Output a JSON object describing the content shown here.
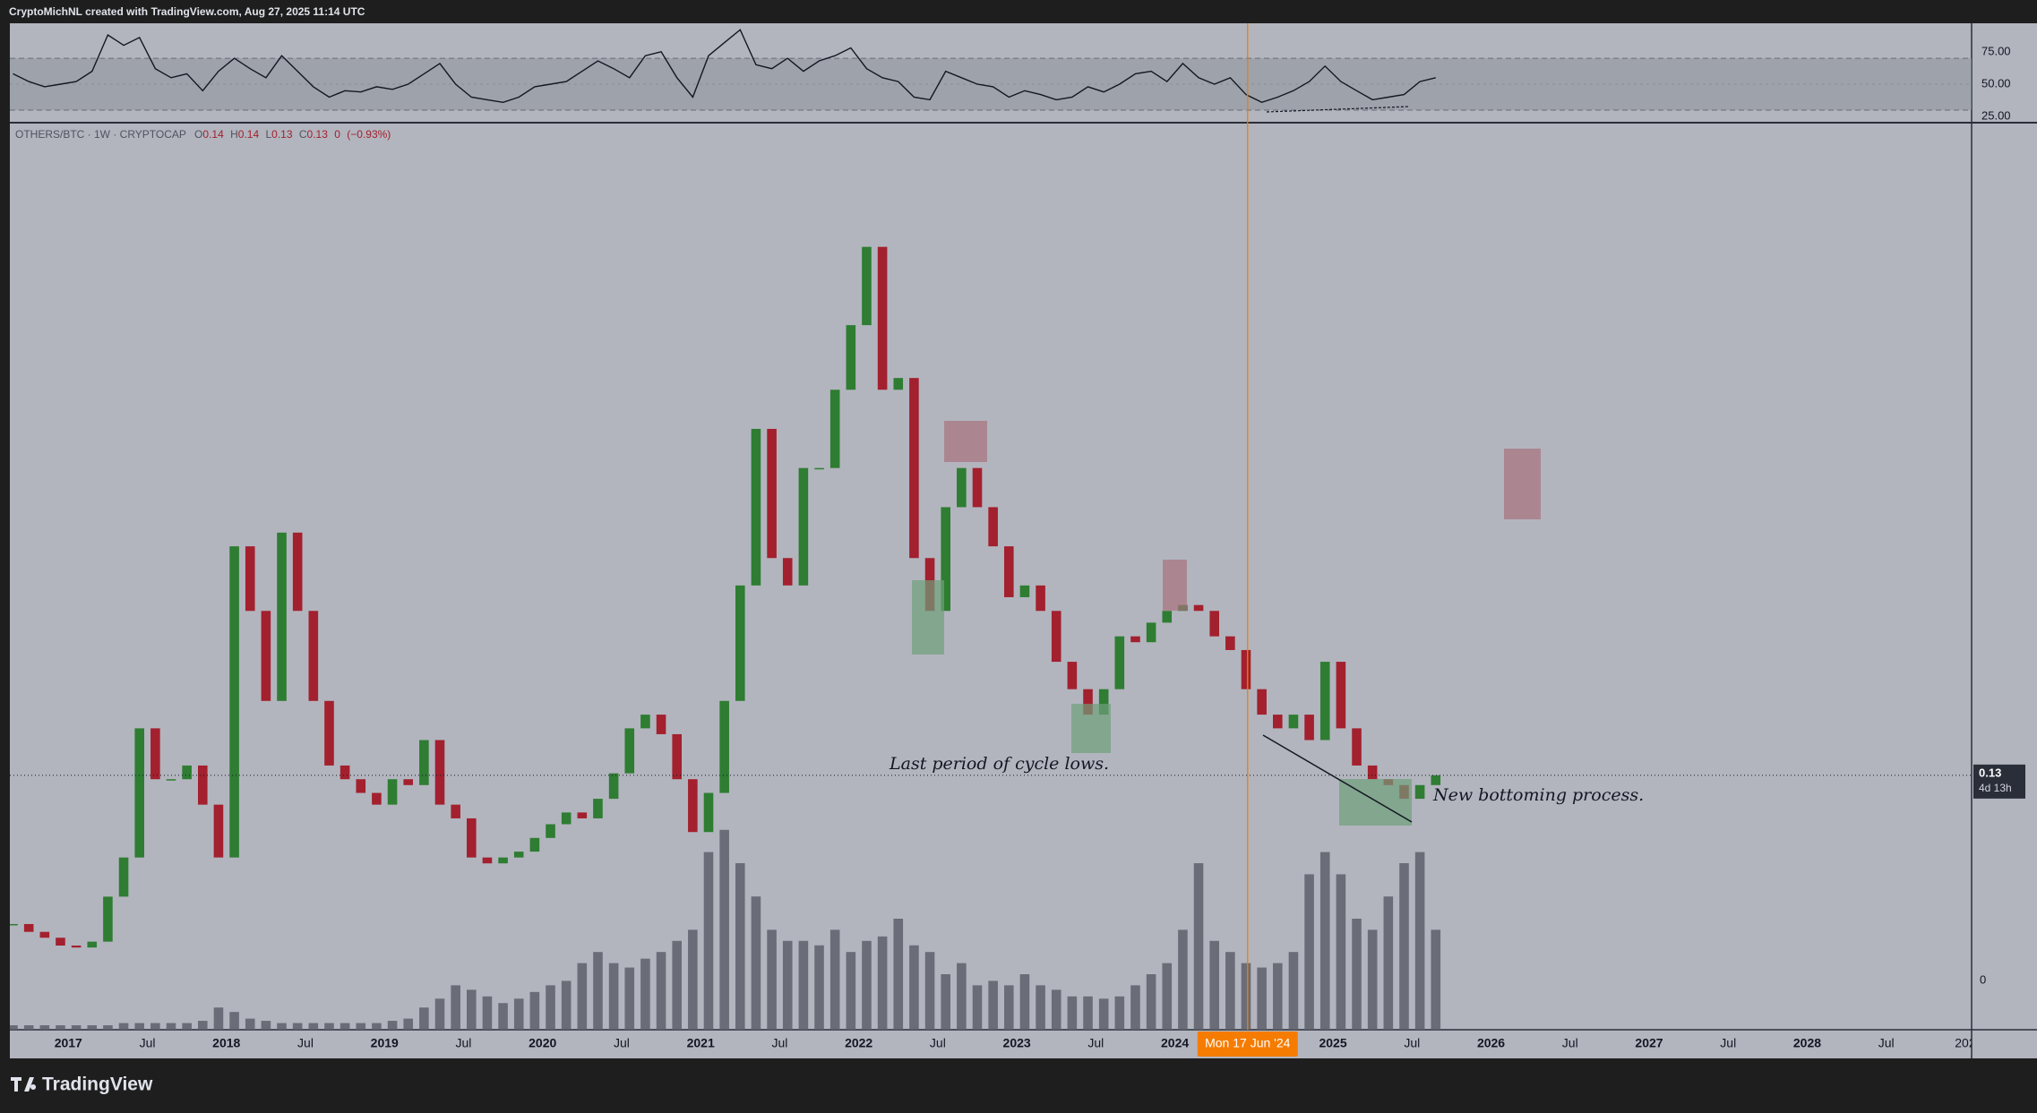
{
  "header": "CryptoMichNL created with TradingView.com, Aug 27, 2025 11:14 UTC",
  "footer_logo": "TradingView",
  "chart_data": [
    {
      "type": "candlestick",
      "symbol": "OTHERS/BTC · 1W · CRYPTOCAP",
      "ohlc": [
        {
          "label": "O",
          "value": 0.14
        },
        {
          "label": "H",
          "value": 0.14
        },
        {
          "label": "L",
          "value": 0.13
        },
        {
          "label": "C",
          "value": 0.13
        }
      ],
      "change": 0,
      "change_pct": {
        "value": -0.93,
        "label": "(−0.93%)"
      },
      "up_color": "#2e7d32",
      "down_color": "#a3202e",
      "x": [
        2016.65,
        2016.75,
        2016.85,
        2016.95,
        2017.05,
        2017.15,
        2017.25,
        2017.35,
        2017.45,
        2017.55,
        2017.65,
        2017.75,
        2017.85,
        2017.95,
        2018.05,
        2018.15,
        2018.25,
        2018.35,
        2018.45,
        2018.55,
        2018.65,
        2018.75,
        2018.85,
        2018.95,
        2019.05,
        2019.15,
        2019.25,
        2019.35,
        2019.45,
        2019.55,
        2019.65,
        2019.75,
        2019.85,
        2019.95,
        2020.05,
        2020.15,
        2020.25,
        2020.35,
        2020.45,
        2020.55,
        2020.65,
        2020.75,
        2020.85,
        2020.95,
        2021.05,
        2021.15,
        2021.25,
        2021.35,
        2021.45,
        2021.55,
        2021.65,
        2021.75,
        2021.85,
        2021.95,
        2022.05,
        2022.15,
        2022.25,
        2022.35,
        2022.45,
        2022.55,
        2022.65,
        2022.75,
        2022.85,
        2022.95,
        2023.05,
        2023.15,
        2023.25,
        2023.35,
        2023.45,
        2023.55,
        2023.65,
        2023.75,
        2023.85,
        2023.95,
        2024.05,
        2024.15,
        2024.25,
        2024.35,
        2024.45,
        2024.55,
        2024.65,
        2024.75,
        2024.85,
        2024.95,
        2025.05,
        2025.15,
        2025.25,
        2025.35,
        2025.45,
        2025.55,
        2025.65
      ],
      "values": [
        0.054,
        0.05,
        0.047,
        0.043,
        0.042,
        0.045,
        0.068,
        0.088,
        0.154,
        0.128,
        0.128,
        0.135,
        0.115,
        0.088,
        0.247,
        0.214,
        0.168,
        0.254,
        0.214,
        0.168,
        0.135,
        0.128,
        0.121,
        0.115,
        0.128,
        0.125,
        0.148,
        0.115,
        0.108,
        0.088,
        0.085,
        0.088,
        0.091,
        0.098,
        0.105,
        0.111,
        0.108,
        0.118,
        0.131,
        0.154,
        0.161,
        0.151,
        0.128,
        0.101,
        0.121,
        0.168,
        0.227,
        0.307,
        0.241,
        0.227,
        0.287,
        0.287,
        0.327,
        0.36,
        0.4,
        0.327,
        0.333,
        0.241,
        0.214,
        0.267,
        0.287,
        0.267,
        0.247,
        0.221,
        0.227,
        0.214,
        0.188,
        0.174,
        0.161,
        0.174,
        0.201,
        0.198,
        0.208,
        0.214,
        0.217,
        0.214,
        0.201,
        0.194,
        0.174,
        0.161,
        0.154,
        0.161,
        0.148,
        0.188,
        0.154,
        0.135,
        0.128,
        0.125,
        0.118,
        0.125,
        0.13
      ],
      "volume": {
        "color": "#5d606b",
        "ylim": [
          0,
          100
        ],
        "yticks": [
          0
        ],
        "values": [
          2,
          2,
          2,
          2,
          2,
          2,
          2,
          3,
          3,
          3,
          3,
          3,
          4,
          10,
          8,
          5,
          4,
          3,
          3,
          3,
          3,
          3,
          3,
          3,
          4,
          5,
          10,
          14,
          20,
          18,
          15,
          12,
          14,
          17,
          20,
          22,
          30,
          35,
          30,
          28,
          32,
          35,
          40,
          45,
          80,
          90,
          75,
          60,
          45,
          40,
          40,
          38,
          45,
          35,
          40,
          42,
          50,
          38,
          35,
          25,
          30,
          20,
          22,
          20,
          25,
          20,
          18,
          15,
          15,
          14,
          15,
          20,
          25,
          30,
          45,
          75,
          40,
          35,
          30,
          28,
          30,
          35,
          70,
          80,
          70,
          50,
          45,
          60,
          75,
          80,
          45
        ]
      },
      "xlim": [
        2016.63,
        2029.04
      ],
      "ylim": [
        0,
        0.463
      ],
      "xticks": [
        2017,
        {
          "value": 2017.5,
          "label": "Jul"
        },
        2018,
        {
          "value": 2018.5,
          "label": "Jul"
        },
        2019,
        {
          "value": 2019.5,
          "label": "Jul"
        },
        2020,
        {
          "value": 2020.5,
          "label": "Jul"
        },
        2021,
        {
          "value": 2021.5,
          "label": "Jul"
        },
        2022,
        {
          "value": 2022.5,
          "label": "Jul"
        },
        2023,
        {
          "value": 2023.5,
          "label": "Jul"
        },
        2024,
        2025,
        {
          "value": 2025.5,
          "label": "Jul"
        },
        2026,
        {
          "value": 2026.5,
          "label": "Jul"
        },
        2027,
        {
          "value": 2027.5,
          "label": "Jul"
        },
        2028,
        {
          "value": 2028.5,
          "label": "Jul"
        },
        {
          "value": 2029,
          "label": "202"
        }
      ],
      "crosshair": {
        "value": 2024.46,
        "label": "Mon 17 Jun '24",
        "color": "#f57c00"
      },
      "last_price": {
        "value": 0.13,
        "countdown": "4d 13h"
      },
      "annotations": [
        "Last period of cycle lows.",
        "New bottoming process."
      ]
    },
    {
      "type": "line",
      "color": "#131722",
      "x": [
        2016.65,
        2016.75,
        2016.85,
        2016.95,
        2017.05,
        2017.15,
        2017.25,
        2017.35,
        2017.45,
        2017.55,
        2017.65,
        2017.75,
        2017.85,
        2017.95,
        2018.05,
        2018.15,
        2018.25,
        2018.35,
        2018.45,
        2018.55,
        2018.65,
        2018.75,
        2018.85,
        2018.95,
        2019.05,
        2019.15,
        2019.25,
        2019.35,
        2019.45,
        2019.55,
        2019.65,
        2019.75,
        2019.85,
        2019.95,
        2020.05,
        2020.15,
        2020.25,
        2020.35,
        2020.45,
        2020.55,
        2020.65,
        2020.75,
        2020.85,
        2020.95,
        2021.05,
        2021.15,
        2021.25,
        2021.35,
        2021.45,
        2021.55,
        2021.65,
        2021.75,
        2021.85,
        2021.95,
        2022.05,
        2022.15,
        2022.25,
        2022.35,
        2022.45,
        2022.55,
        2022.65,
        2022.75,
        2022.85,
        2022.95,
        2023.05,
        2023.15,
        2023.25,
        2023.35,
        2023.45,
        2023.55,
        2023.65,
        2023.75,
        2023.85,
        2023.95,
        2024.05,
        2024.15,
        2024.25,
        2024.35,
        2024.45,
        2024.55,
        2024.65,
        2024.75,
        2024.85,
        2024.95,
        2025.05,
        2025.15,
        2025.25,
        2025.35,
        2025.45,
        2025.55,
        2025.65
      ],
      "values": [
        58,
        52,
        48,
        50,
        52,
        60,
        88,
        80,
        86,
        62,
        55,
        58,
        45,
        60,
        70,
        62,
        55,
        72,
        60,
        48,
        40,
        45,
        44,
        48,
        46,
        50,
        58,
        66,
        50,
        40,
        38,
        36,
        40,
        48,
        50,
        52,
        60,
        68,
        62,
        55,
        72,
        75,
        55,
        40,
        72,
        82,
        92,
        65,
        62,
        70,
        60,
        68,
        72,
        78,
        62,
        55,
        52,
        40,
        38,
        60,
        55,
        50,
        48,
        40,
        45,
        42,
        38,
        40,
        48,
        44,
        50,
        58,
        60,
        52,
        66,
        55,
        50,
        55,
        42,
        36,
        40,
        45,
        52,
        64,
        52,
        45,
        38,
        40,
        42,
        52,
        55
      ],
      "xlim": [
        2016.63,
        2029.04
      ],
      "ylim": [
        21,
        97
      ],
      "yticks": [
        {
          "value": 75,
          "label": "75.00"
        },
        {
          "value": 50,
          "label": "50.00"
        },
        {
          "value": 25,
          "label": "25.00"
        }
      ],
      "band": [
        30,
        70
      ]
    }
  ]
}
